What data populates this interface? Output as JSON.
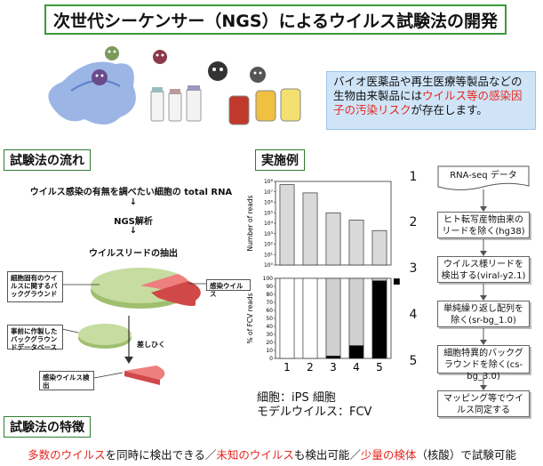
{
  "title": "次世代シーケンサー（NGS）によるウイルス試験法の開発",
  "intro": {
    "part1": "バイオ医薬品や再生医療等製品などの生物由来製品には",
    "part2_red": "ウイルス等の感染因子の汚染リスク",
    "part3": "が存在します。"
  },
  "flow": {
    "heading": "試験法の流れ",
    "step1": "ウイルス感染の有無を調べたい細胞の total RNA",
    "arrow1": "↓",
    "step2": "NGS解析",
    "arrow2": "↓",
    "step3": "ウイルスリードの抽出",
    "box_cell_background": "細胞固有のウイルスに関するバックグラウンド",
    "box_infection_virus": "感染ウイルス",
    "box_database": "事前に作製したバックグラウンドデータベース",
    "subtract_label": "差しひく",
    "box_detect": "感染ウイルス検出"
  },
  "example": {
    "heading": "実施例",
    "cell_label": "細胞：iPS 細胞",
    "model_virus_label": "モデルウイルス：FCV"
  },
  "chart_data": [
    {
      "type": "bar",
      "title": "",
      "ylabel": "Number of reads",
      "yscale": "log",
      "ylim": [
        1,
        100000000
      ],
      "ytick_labels": [
        "10⁸",
        "10⁷",
        "10⁶",
        "10⁵",
        "10⁴",
        "10³",
        "10²",
        "10¹",
        "10⁰"
      ],
      "categories": [
        "1",
        "2",
        "3",
        "4",
        "5"
      ],
      "values": [
        50000000,
        8000000,
        100000,
        20000,
        2000
      ],
      "bar_color": "#d9d9d9"
    },
    {
      "type": "bar",
      "stacked": true,
      "title": "",
      "ylabel": "% of FCV reads",
      "ylim": [
        0,
        100
      ],
      "ytick_labels": [
        "100",
        "90",
        "80",
        "70",
        "60",
        "50",
        "40",
        "30",
        "20",
        "10",
        "0"
      ],
      "categories": [
        "1",
        "2",
        "3",
        "4",
        "5"
      ],
      "series": [
        {
          "color": "#000000",
          "values": [
            0,
            0,
            3,
            16,
            97
          ]
        },
        {
          "color": "#d0d0d0",
          "values": [
            0,
            0,
            97,
            84,
            3
          ]
        },
        {
          "color": "#ffffff",
          "values": [
            100,
            100,
            0,
            0,
            0
          ]
        }
      ],
      "legend_marker": "■"
    }
  ],
  "pipeline": {
    "steps": [
      {
        "num": "1",
        "text": "RNA-seq データ"
      },
      {
        "num": "2",
        "text": "ヒト転写産物由来のリードを除く(hg38)"
      },
      {
        "num": "3",
        "text": "ウイルス様リードを検出する(viral-y2.1)"
      },
      {
        "num": "4",
        "text": "単純繰り返し配列を除く(sr-bg_1.0)"
      },
      {
        "num": "5",
        "text": "細胞特異的バックグラウンドを除く(cs-bg_3.0)"
      },
      {
        "num": "",
        "text": "マッピング等でウイルス同定する"
      }
    ]
  },
  "features": {
    "heading": "試験法の特徴",
    "seg1_red": "多数のウイルス",
    "seg2": "を同時に検出できる／",
    "seg3_red": "未知のウイルス",
    "seg4": "も検出可能／",
    "seg5_red": "少量の検体",
    "seg6": "（核酸）で試験可能"
  },
  "colors": {
    "accent_green": "#3a9a3a",
    "red": "#e6261f",
    "intro_bg": "#cfe4f7",
    "pie_green": "#c6dca0",
    "pie_red": "#ef7f7f"
  }
}
